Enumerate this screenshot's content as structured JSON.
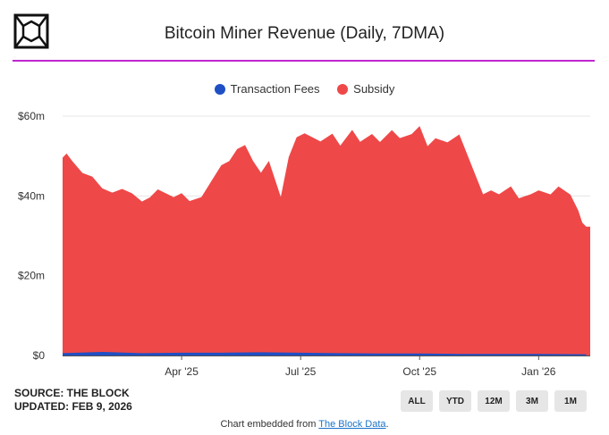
{
  "header": {
    "logo_icon": "the-block-cube-logo"
  },
  "chart_data": {
    "type": "area",
    "title": "Bitcoin Miner Revenue (Daily, 7DMA)",
    "xlabel": "",
    "ylabel": "",
    "ylim": [
      0,
      60
    ],
    "y_ticks": [
      0,
      20,
      40,
      60
    ],
    "y_tick_labels": [
      "$0",
      "$20m",
      "$40m",
      "$60m"
    ],
    "x_ticks": [
      {
        "pos": 3.0,
        "label": "Apr '25"
      },
      {
        "pos": 6.0,
        "label": "Jul '25"
      },
      {
        "pos": 9.0,
        "label": "Oct '25"
      },
      {
        "pos": 12.0,
        "label": "Jan '26"
      }
    ],
    "x_range": [
      0,
      13.3
    ],
    "legend": [
      "Transaction Fees",
      "Subsidy"
    ],
    "series": [
      {
        "name": "Transaction Fees",
        "color": "#1f4fc4",
        "x": [
          0,
          1,
          2,
          3,
          4,
          5,
          6,
          7,
          8,
          9,
          10,
          11,
          12,
          13.2
        ],
        "values": [
          0.6,
          0.9,
          0.6,
          0.7,
          0.7,
          0.8,
          0.7,
          0.6,
          0.5,
          0.5,
          0.4,
          0.4,
          0.4,
          0.3
        ]
      },
      {
        "name": "Subsidy",
        "color": "#ef4848",
        "x": [
          0,
          0.1,
          0.25,
          0.5,
          0.75,
          1.0,
          1.25,
          1.5,
          1.75,
          2.0,
          2.2,
          2.4,
          2.6,
          2.8,
          3.0,
          3.2,
          3.5,
          3.75,
          4.0,
          4.2,
          4.4,
          4.6,
          4.8,
          5.0,
          5.2,
          5.4,
          5.5,
          5.7,
          5.9,
          6.1,
          6.3,
          6.5,
          6.8,
          7.0,
          7.3,
          7.5,
          7.8,
          8.0,
          8.3,
          8.5,
          8.8,
          9.0,
          9.2,
          9.4,
          9.7,
          10.0,
          10.2,
          10.4,
          10.6,
          10.8,
          11.0,
          11.3,
          11.5,
          11.8,
          12.0,
          12.3,
          12.5,
          12.8,
          13.0,
          13.1,
          13.2,
          13.3
        ],
        "values": [
          49,
          50,
          48,
          45,
          44,
          41,
          40,
          41,
          40,
          38,
          39,
          41,
          40,
          39,
          40,
          38,
          39,
          43,
          47,
          48,
          51,
          52,
          48,
          45,
          48,
          42,
          39,
          49,
          54,
          55,
          54,
          53,
          55,
          52,
          56,
          53,
          55,
          53,
          56,
          54,
          55,
          57,
          52,
          54,
          53,
          55,
          50,
          45,
          40,
          41,
          40,
          42,
          39,
          40,
          41,
          40,
          42,
          40,
          36,
          33,
          32,
          32
        ]
      }
    ]
  },
  "source": {
    "line1": "SOURCE: THE BLOCK",
    "line2": "UPDATED: FEB 9, 2026"
  },
  "range_buttons": [
    "ALL",
    "YTD",
    "12M",
    "3M",
    "1M"
  ],
  "footer": {
    "prefix": "Chart embedded from ",
    "link": "The Block Data",
    "suffix": "."
  }
}
